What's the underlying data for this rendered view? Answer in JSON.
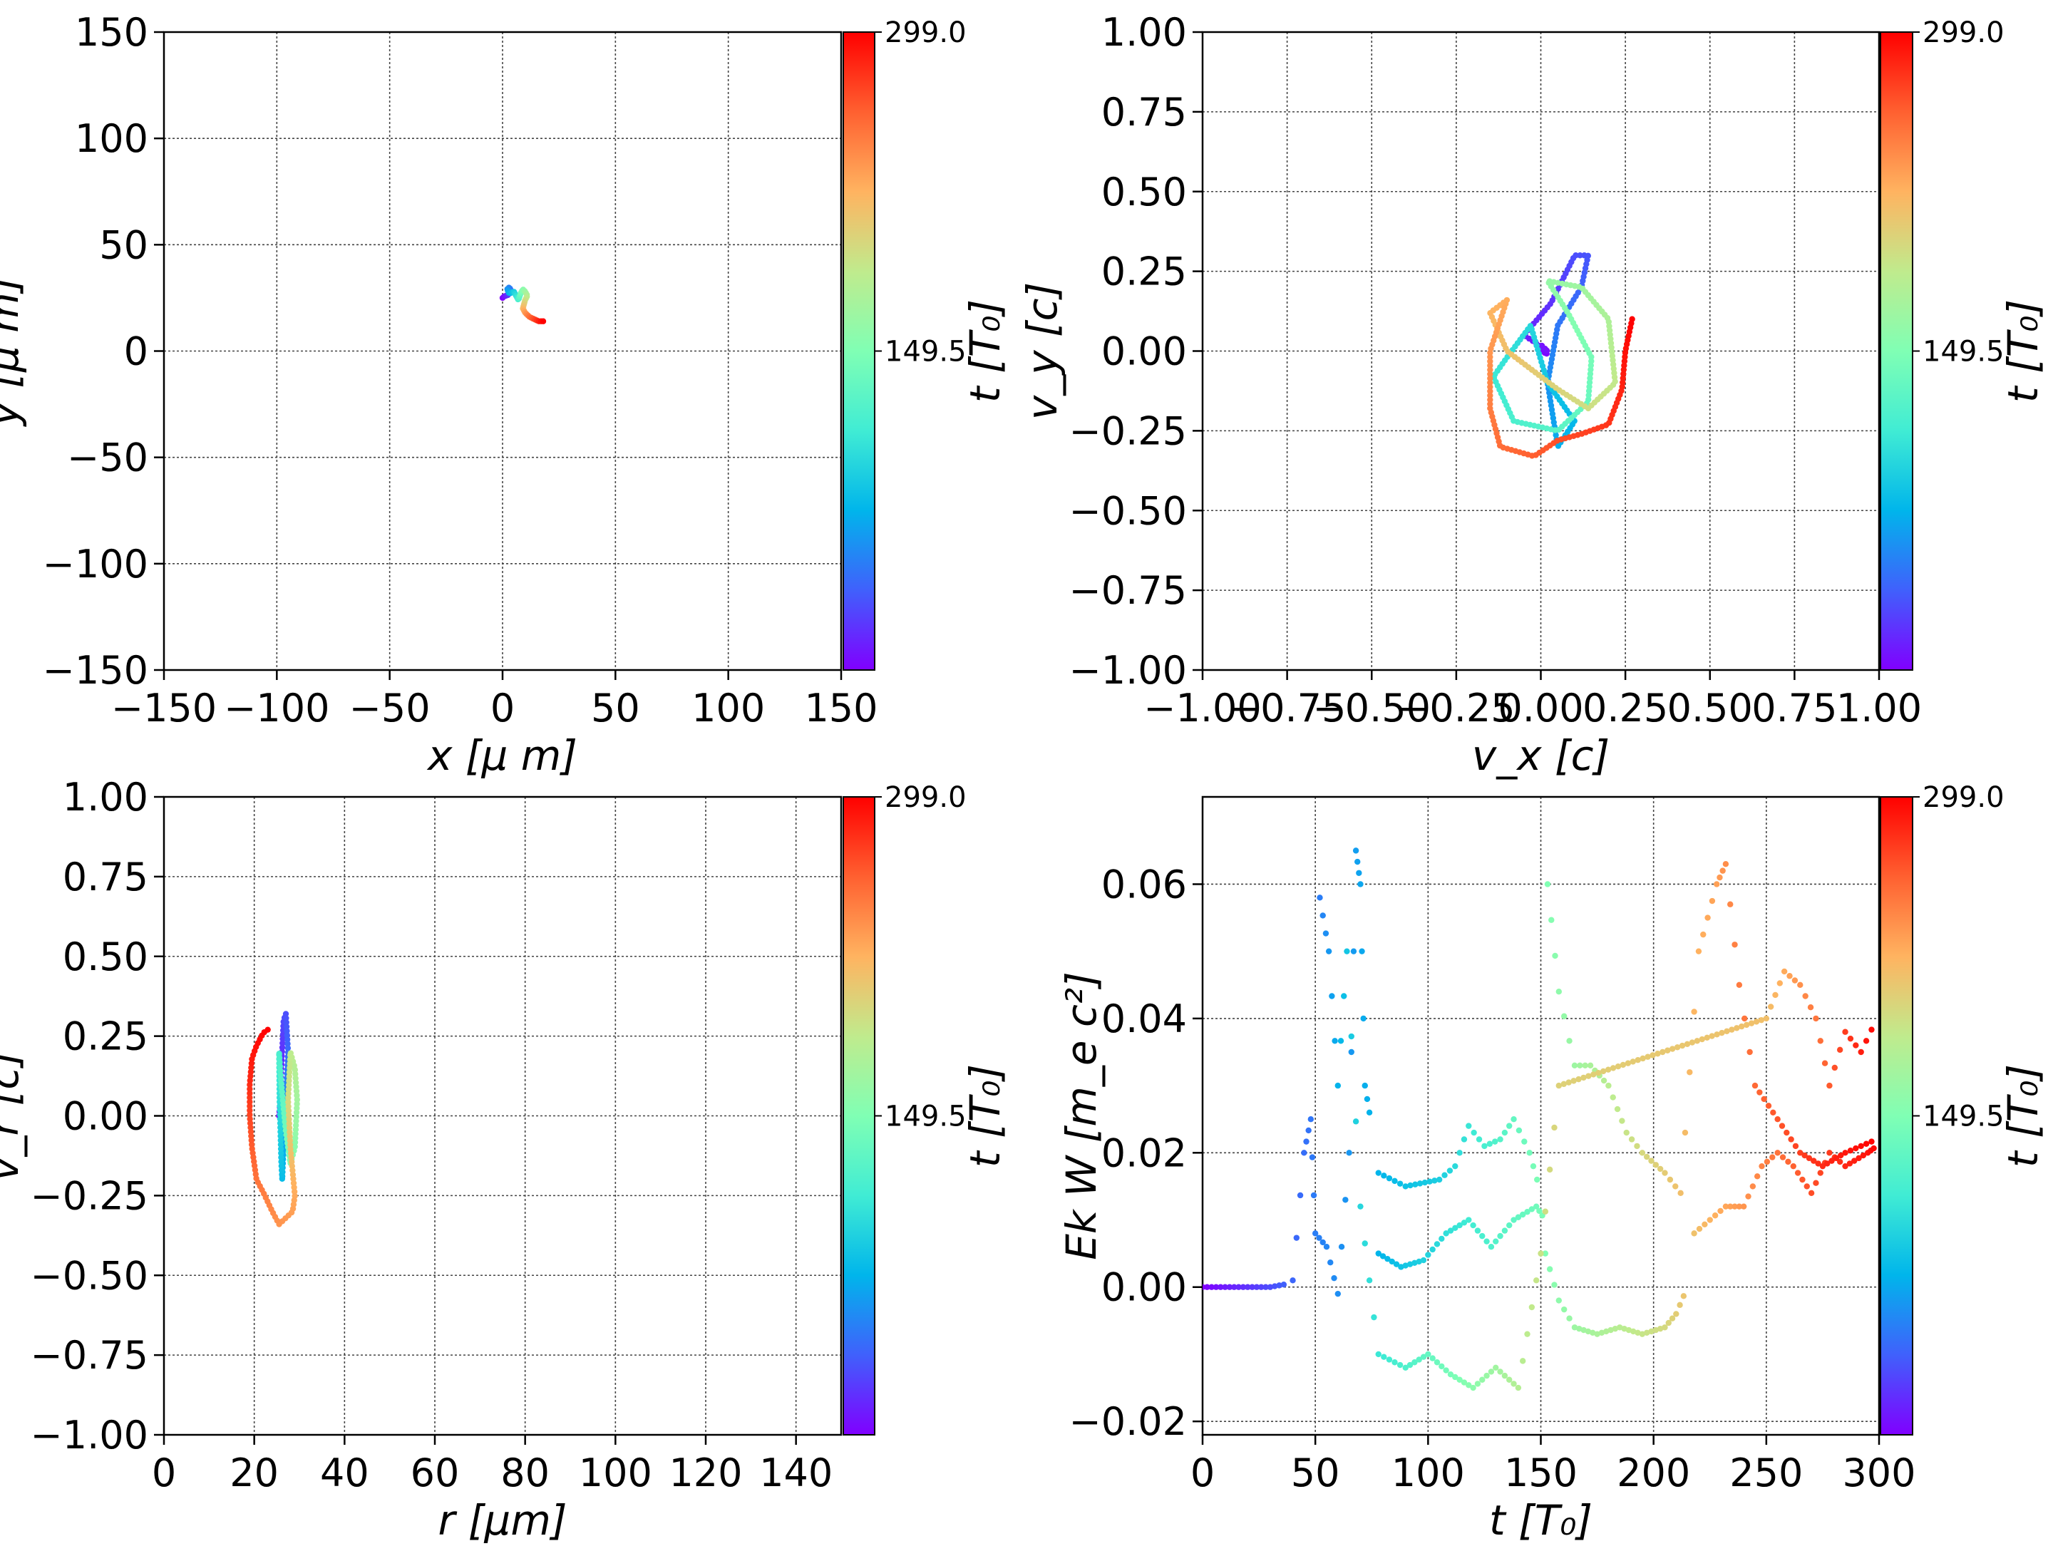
{
  "colormap": [
    "#8000ff",
    "#4060fc",
    "#00b5eb",
    "#40ecd4",
    "#80ffb4",
    "#c0eb8d",
    "#ffb360",
    "#ff6030",
    "#ff0000"
  ],
  "grid": true,
  "chart_data": [
    {
      "id": "xy",
      "type": "scatter",
      "xlabel": "x  [μ m]",
      "ylabel": "y  [μ m]",
      "xlim": [
        -150,
        150
      ],
      "ylim": [
        -150,
        150
      ],
      "xticks": [
        "−150",
        "−100",
        "−50",
        "0",
        "50",
        "100",
        "150"
      ],
      "yticks": [
        "−150",
        "−100",
        "−50",
        "0",
        "50",
        "100",
        "150"
      ],
      "colorbar": {
        "label": "t [T₀]",
        "ticks": [
          "299.0",
          "149.5"
        ],
        "range": [
          0,
          299
        ]
      },
      "trajectory": [
        [
          0,
          25
        ],
        [
          1,
          26
        ],
        [
          2,
          26
        ],
        [
          3,
          27
        ],
        [
          4,
          28
        ],
        [
          3,
          30
        ],
        [
          2,
          29
        ],
        [
          3,
          27
        ],
        [
          5,
          28
        ],
        [
          6,
          26
        ],
        [
          7,
          24
        ],
        [
          8,
          27
        ],
        [
          9,
          29
        ],
        [
          10,
          28
        ],
        [
          11,
          26
        ],
        [
          10,
          24
        ],
        [
          9,
          20
        ],
        [
          10,
          18
        ],
        [
          12,
          16
        ],
        [
          14,
          15
        ],
        [
          16,
          14
        ],
        [
          18,
          14
        ]
      ],
      "time_range": [
        0,
        299
      ]
    },
    {
      "id": "vxvy",
      "type": "scatter",
      "xlabel": "v_x [c]",
      "ylabel": "v_y [c]",
      "xlim": [
        -1.0,
        1.0
      ],
      "ylim": [
        -1.0,
        1.0
      ],
      "xticks": [
        "−1.00",
        "−0.75",
        "−0.50",
        "−0.25",
        "0.00",
        "0.25",
        "0.50",
        "0.75",
        "1.00"
      ],
      "yticks": [
        "−1.00",
        "−0.75",
        "−0.50",
        "−0.25",
        "0.00",
        "0.25",
        "0.50",
        "0.75",
        "1.00"
      ],
      "colorbar": {
        "label": "t [T₀]",
        "ticks": [
          "299.0",
          "149.5"
        ],
        "range": [
          0,
          299
        ]
      },
      "trajectory": [
        [
          0.0,
          0.0
        ],
        [
          0.02,
          -0.01
        ],
        [
          -0.01,
          0.01
        ],
        [
          0.0,
          0.02
        ],
        [
          0.02,
          0.0
        ],
        [
          -0.05,
          0.05
        ],
        [
          0.03,
          0.15
        ],
        [
          0.1,
          0.3
        ],
        [
          0.14,
          0.3
        ],
        [
          0.12,
          0.2
        ],
        [
          0.05,
          0.08
        ],
        [
          0.02,
          -0.1
        ],
        [
          0.05,
          -0.3
        ],
        [
          0.1,
          -0.22
        ],
        [
          0.02,
          -0.1
        ],
        [
          -0.03,
          0.08
        ],
        [
          -0.1,
          -0.02
        ],
        [
          -0.14,
          -0.08
        ],
        [
          -0.08,
          -0.22
        ],
        [
          0.05,
          -0.25
        ],
        [
          0.14,
          -0.16
        ],
        [
          0.15,
          -0.02
        ],
        [
          0.08,
          0.12
        ],
        [
          0.02,
          0.22
        ],
        [
          0.12,
          0.2
        ],
        [
          0.2,
          0.1
        ],
        [
          0.22,
          -0.1
        ],
        [
          0.14,
          -0.18
        ],
        [
          0.05,
          -0.12
        ],
        [
          -0.1,
          0.0
        ],
        [
          -0.15,
          0.12
        ],
        [
          -0.1,
          0.16
        ],
        [
          -0.15,
          0.0
        ],
        [
          -0.15,
          -0.18
        ],
        [
          -0.12,
          -0.3
        ],
        [
          -0.02,
          -0.33
        ],
        [
          0.05,
          -0.28
        ],
        [
          0.12,
          -0.26
        ],
        [
          0.2,
          -0.23
        ],
        [
          0.24,
          -0.12
        ],
        [
          0.25,
          0.0
        ],
        [
          0.27,
          0.1
        ]
      ],
      "time_range": [
        0,
        299
      ]
    },
    {
      "id": "rvr",
      "type": "scatter",
      "xlabel": "r [μm]",
      "ylabel": "v_r [c]",
      "xlim": [
        0,
        150
      ],
      "ylim": [
        -1.0,
        1.0
      ],
      "xticks": [
        "0",
        "20",
        "40",
        "60",
        "80",
        "100",
        "120",
        "140"
      ],
      "yticks": [
        "−1.00",
        "−0.75",
        "−0.50",
        "−0.25",
        "0.00",
        "0.25",
        "0.50",
        "0.75",
        "1.00"
      ],
      "colorbar": {
        "label": "t [T₀]",
        "ticks": [
          "299.0",
          "149.5"
        ],
        "range": [
          0,
          299
        ]
      },
      "trajectory": [
        [
          25.5,
          0.0
        ],
        [
          25.8,
          0.05
        ],
        [
          26,
          0.15
        ],
        [
          26.5,
          0.3
        ],
        [
          27,
          0.32
        ],
        [
          27.5,
          0.2
        ],
        [
          27,
          0.05
        ],
        [
          26.5,
          -0.1
        ],
        [
          26.2,
          -0.2
        ],
        [
          26,
          -0.15
        ],
        [
          25.6,
          0.05
        ],
        [
          25.5,
          0.2
        ],
        [
          26,
          0.1
        ],
        [
          27,
          -0.05
        ],
        [
          28,
          -0.15
        ],
        [
          29,
          -0.1
        ],
        [
          29.5,
          0.05
        ],
        [
          29,
          0.15
        ],
        [
          28,
          0.2
        ],
        [
          27.5,
          0.05
        ],
        [
          28,
          -0.1
        ],
        [
          29,
          -0.25
        ],
        [
          28.5,
          -0.3
        ],
        [
          27,
          -0.32
        ],
        [
          25.5,
          -0.34
        ],
        [
          24,
          -0.3
        ],
        [
          22,
          -0.24
        ],
        [
          20.5,
          -0.2
        ],
        [
          19.5,
          -0.1
        ],
        [
          19,
          0.0
        ],
        [
          19,
          0.1
        ],
        [
          19.5,
          0.18
        ],
        [
          20.5,
          0.22
        ],
        [
          22,
          0.26
        ],
        [
          23,
          0.27
        ]
      ],
      "time_range": [
        0,
        299
      ]
    },
    {
      "id": "ekw",
      "type": "scatter",
      "xlabel": "t [T₀]",
      "ylabel": "Ek W [m_e c²]",
      "xlim": [
        0,
        300
      ],
      "ylim": [
        -0.022,
        0.073
      ],
      "xticks": [
        "0",
        "50",
        "100",
        "150",
        "200",
        "250",
        "300"
      ],
      "yticks": [
        "−0.02",
        "0.00",
        "0.02",
        "0.04",
        "0.06"
      ],
      "colorbar": {
        "label": "t [T₀]",
        "ticks": [
          "299.0",
          "149.5"
        ],
        "range": [
          0,
          299
        ]
      },
      "series": [
        {
          "t_start": 0,
          "t_end": 40,
          "points": [
            [
              0,
              0
            ],
            [
              10,
              0
            ],
            [
              20,
              0
            ],
            [
              30,
              0
            ],
            [
              38,
              0.0005
            ]
          ]
        },
        {
          "t_start": 40,
          "t_end": 75,
          "points": [
            [
              40,
              0.001
            ],
            [
              45,
              0.02
            ],
            [
              48,
              0.025
            ],
            [
              50,
              0.008
            ],
            [
              55,
              0.006
            ],
            [
              60,
              -0.001
            ],
            [
              65,
              0.02
            ],
            [
              68,
              0.065
            ],
            [
              70,
              0.06
            ],
            [
              72,
              0.03
            ],
            [
              75,
              0.024
            ]
          ]
        },
        {
          "t_start": 75,
          "t_end": 150,
          "points": [
            [
              78,
              0.017
            ],
            [
              90,
              0.015
            ],
            [
              105,
              0.016
            ],
            [
              112,
              0.018
            ],
            [
              118,
              0.024
            ],
            [
              125,
              0.021
            ],
            [
              132,
              0.022
            ],
            [
              138,
              0.025
            ],
            [
              145,
              0.02
            ],
            [
              150,
              0.014
            ]
          ]
        },
        {
          "t_start": 75,
          "t_end": 150,
          "points": [
            [
              78,
              0.005
            ],
            [
              88,
              0.003
            ],
            [
              98,
              0.004
            ],
            [
              108,
              0.008
            ],
            [
              118,
              0.01
            ],
            [
              128,
              0.006
            ],
            [
              138,
              0.01
            ],
            [
              148,
              0.012
            ],
            [
              152,
              0.01
            ]
          ]
        },
        {
          "t_start": 150,
          "t_end": 215,
          "points": [
            [
              152,
              0.005
            ],
            [
              158,
              -0.002
            ],
            [
              165,
              -0.006
            ],
            [
              175,
              -0.007
            ],
            [
              185,
              -0.006
            ],
            [
              195,
              -0.007
            ],
            [
              205,
              -0.006
            ],
            [
              210,
              -0.004
            ],
            [
              215,
              0.0
            ]
          ]
        },
        {
          "t_start": 215,
          "t_end": 299,
          "points": [
            [
              218,
              0.008
            ],
            [
              225,
              0.01
            ],
            [
              232,
              0.012
            ],
            [
              240,
              0.012
            ],
            [
              248,
              0.018
            ],
            [
              255,
              0.02
            ],
            [
              262,
              0.018
            ],
            [
              270,
              0.014
            ],
            [
              278,
              0.02
            ],
            [
              285,
              0.018
            ],
            [
              295,
              0.02
            ],
            [
              299,
              0.021
            ]
          ]
        },
        {
          "t_start": 150,
          "t_end": 299,
          "points": [
            [
              153,
              0.06
            ],
            [
              158,
              0.044
            ],
            [
              165,
              0.033
            ],
            [
              172,
              0.033
            ],
            [
              180,
              0.03
            ],
            [
              188,
              0.023
            ],
            [
              195,
              0.02
            ],
            [
              205,
              0.017
            ],
            [
              212,
              0.014
            ],
            [
              220,
              0.05
            ],
            [
              228,
              0.06
            ],
            [
              232,
              0.063
            ],
            [
              238,
              0.045
            ],
            [
              245,
              0.03
            ],
            [
              255,
              0.025
            ],
            [
              265,
              0.02
            ],
            [
              275,
              0.018
            ],
            [
              285,
              0.02
            ],
            [
              299,
              0.022
            ]
          ]
        },
        {
          "t_start": 50,
          "t_end": 299,
          "points": [
            [
              52,
              0.058
            ],
            [
              56,
              0.05
            ],
            [
              60,
              0.03
            ],
            [
              64,
              0.05
            ],
            [
              70,
              0.012
            ],
            [
              78,
              -0.01
            ],
            [
              90,
              -0.012
            ],
            [
              100,
              -0.01
            ],
            [
              110,
              -0.013
            ],
            [
              120,
              -0.015
            ],
            [
              130,
              -0.012
            ],
            [
              140,
              -0.015
            ],
            [
              150,
              0.005
            ],
            [
              158,
              0.03
            ],
            [
              250,
              0.04
            ],
            [
              258,
              0.047
            ],
            [
              265,
              0.045
            ],
            [
              272,
              0.04
            ],
            [
              278,
              0.03
            ],
            [
              285,
              0.038
            ],
            [
              292,
              0.035
            ],
            [
              299,
              0.04
            ]
          ]
        }
      ]
    }
  ]
}
